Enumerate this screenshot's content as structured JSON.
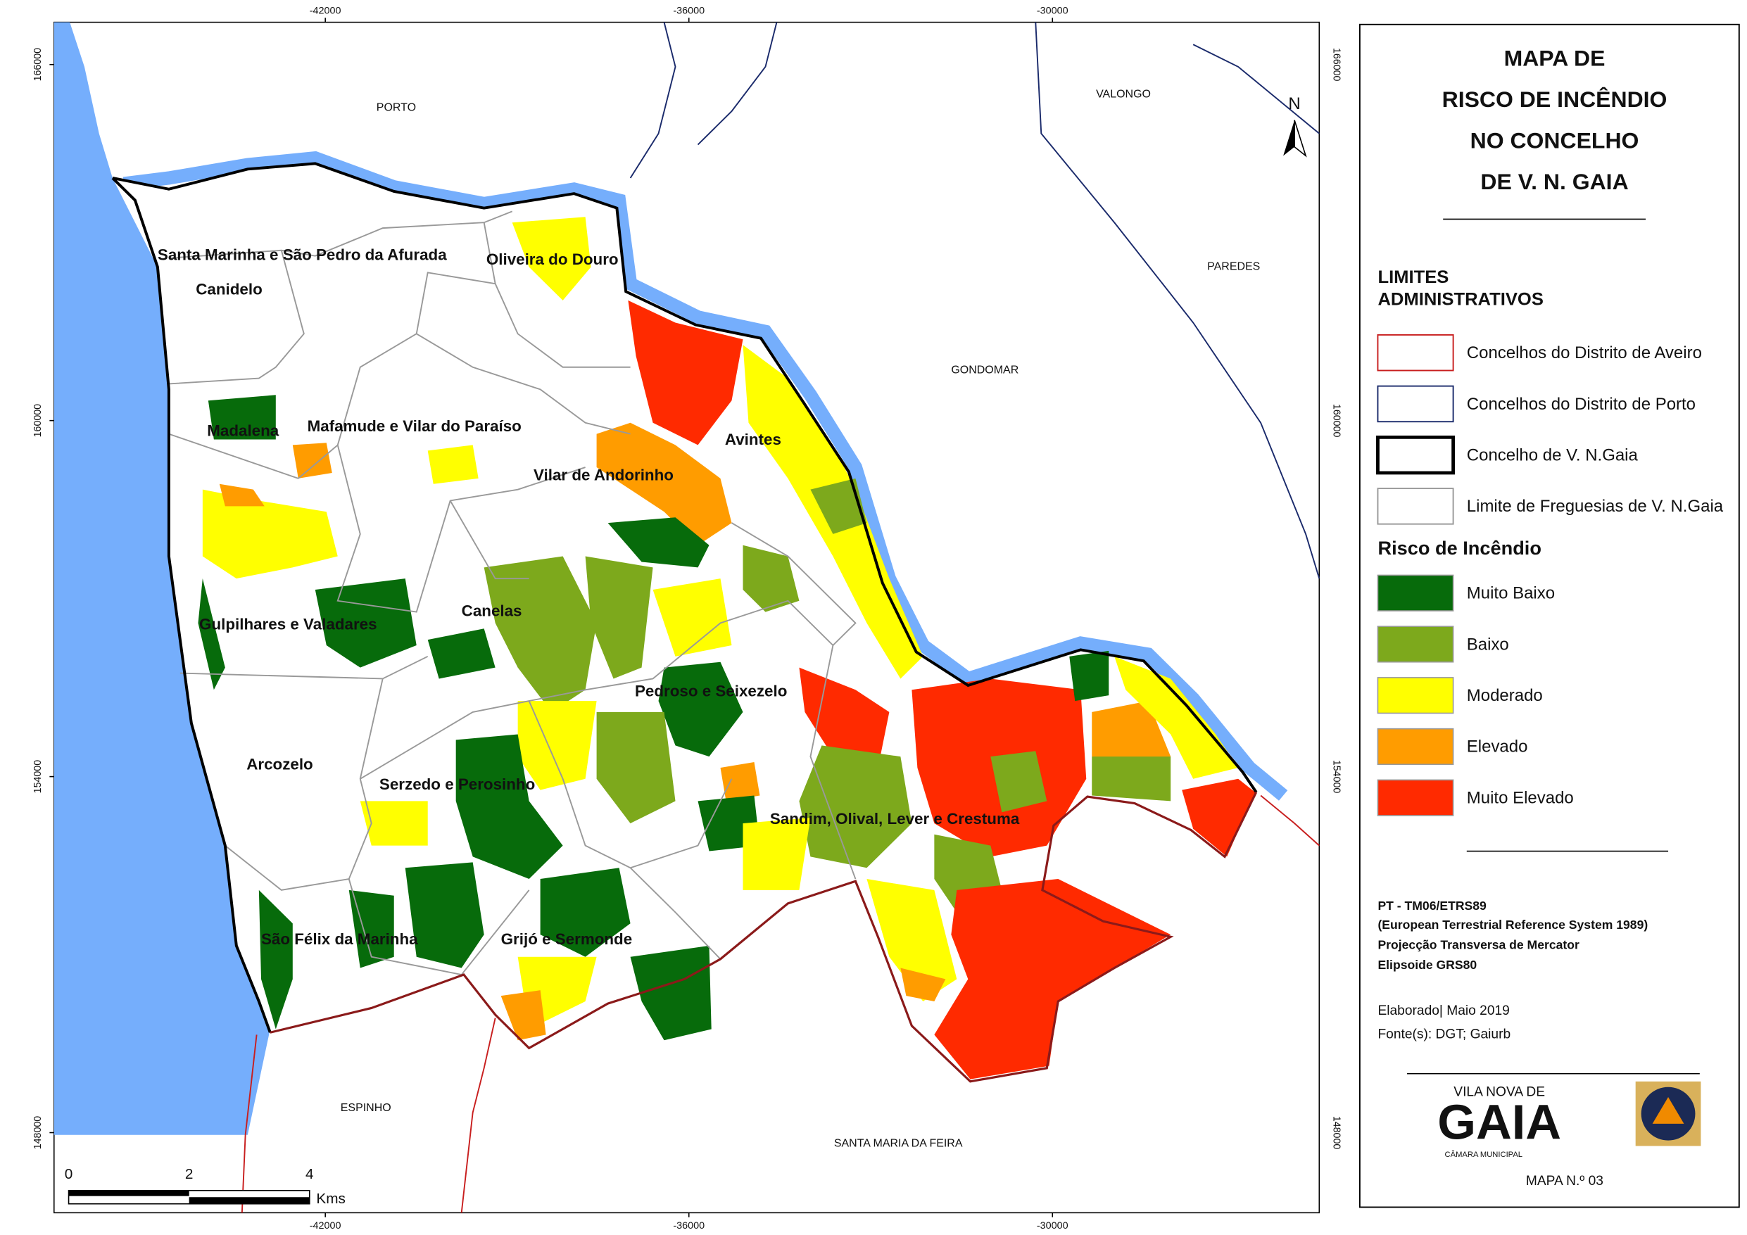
{
  "title": [
    "MAPA DE",
    "RISCO DE INCÊNDIO",
    "NO CONCELHO",
    "DE V. N. GAIA"
  ],
  "north": "N",
  "coordinates": {
    "x_ticks": [
      -42000,
      -36000,
      -30000
    ],
    "y_ticks": [
      166000,
      160000,
      154000,
      148000
    ]
  },
  "scale_bar": {
    "labels": [
      0,
      2,
      4
    ],
    "unit": "Kms"
  },
  "neighbours": [
    "PORTO",
    "VALONGO",
    "PAREDES",
    "GONDOMAR",
    "ESPINHO",
    "SANTA MARIA DA FEIRA"
  ],
  "parishes": [
    "Santa Marinha e São Pedro da Afurada",
    "Oliveira do Douro",
    "Canidelo",
    "Madalena",
    "Mafamude e Vilar do Paraíso",
    "Avintes",
    "Vilar de Andorinho",
    "Canelas",
    "Gulpilhares e Valadares",
    "Pedroso e Seixezelo",
    "Arcozelo",
    "Serzedo e Perosinho",
    "Sandim, Olival, Lever e Crestuma",
    "São Félix da Marinha",
    "Grijó e Sermonde"
  ],
  "legend": {
    "admin_title": [
      "LIMITES",
      "ADMINISTRATIVOS"
    ],
    "admin_items": [
      "Concelhos do Distrito de Aveiro",
      "Concelhos do Distrito de Porto",
      "Concelho de V. N.Gaia",
      "Limite de Freguesias de V. N.Gaia"
    ],
    "risk_title": "Risco de Incêndio",
    "risk_items": [
      {
        "label": "Muito Baixo",
        "color": "#076b0b"
      },
      {
        "label": "Baixo",
        "color": "#7da91c"
      },
      {
        "label": "Moderado",
        "color": "#ffff00"
      },
      {
        "label": "Elevado",
        "color": "#ff9c00"
      },
      {
        "label": "Muito Elevado",
        "color": "#ff2a00"
      }
    ]
  },
  "projection": [
    "PT - TM06/ETRS89",
    "(European Terrestrial Reference System 1989)",
    "Projecção Transversa de Mercator",
    "Elipsoide GRS80"
  ],
  "credits": [
    "Elaborado| Maio 2019",
    "Fonte(s): DGT; Gaiurb"
  ],
  "logo": {
    "top": "VILA NOVA DE",
    "word": "GAIA",
    "sub": "CÂMARA MUNICIPAL"
  },
  "map_number": "MAPA N.º 03"
}
